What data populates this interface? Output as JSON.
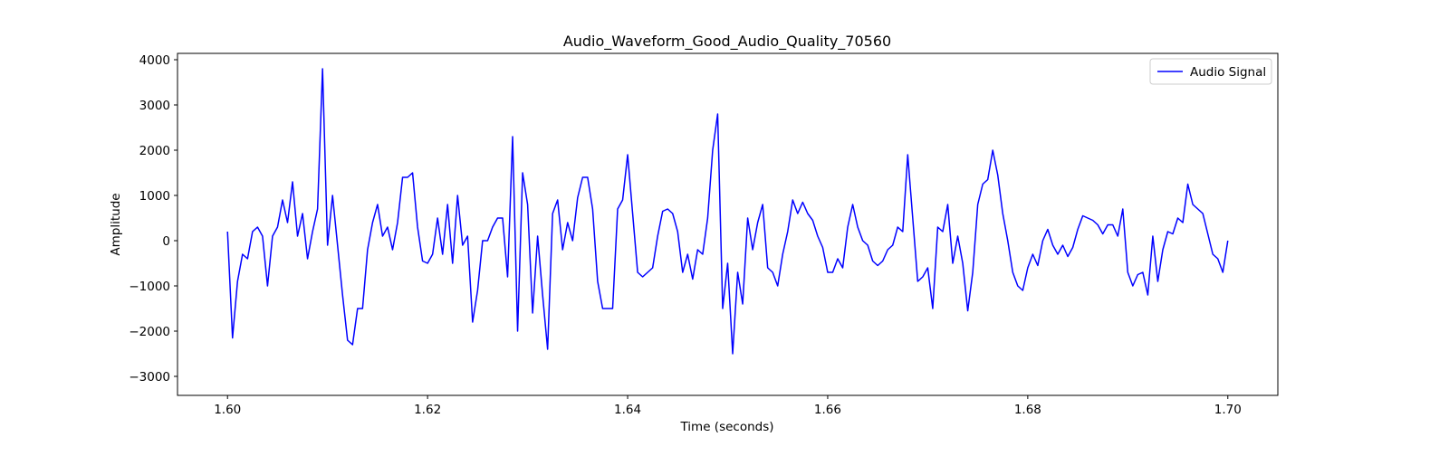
{
  "chart_data": {
    "type": "line",
    "title": "Audio_Waveform_Good_Audio_Quality_70560",
    "xlabel": "Time (seconds)",
    "ylabel": "Amplitude",
    "legend": "upper right",
    "grid": false,
    "xlim": [
      1.595,
      1.705
    ],
    "ylim": [
      -3420,
      4140
    ],
    "xticks": [
      {
        "value": 1.6,
        "label": "1.60"
      },
      1.62,
      1.64,
      1.66,
      1.68,
      {
        "value": 1.7,
        "label": "1.70"
      }
    ],
    "yticks": [
      {
        "value": -3000,
        "label": "−3000"
      },
      {
        "value": -2000,
        "label": "−2000"
      },
      {
        "value": -1000,
        "label": "−1000"
      },
      0,
      1000,
      2000,
      3000,
      4000
    ],
    "x": [
      1.6,
      1.6005,
      1.601,
      1.6015,
      1.602,
      1.6025,
      1.603,
      1.6035,
      1.604,
      1.6045,
      1.605,
      1.6055,
      1.606,
      1.6065,
      1.607,
      1.6075,
      1.608,
      1.6085,
      1.609,
      1.6095,
      1.61,
      1.6105,
      1.611,
      1.6115,
      1.612,
      1.6125,
      1.613,
      1.6135,
      1.614,
      1.6145,
      1.615,
      1.6155,
      1.616,
      1.6165,
      1.617,
      1.6175,
      1.618,
      1.6185,
      1.619,
      1.6195,
      1.62,
      1.6205,
      1.621,
      1.6215,
      1.622,
      1.6225,
      1.623,
      1.6235,
      1.624,
      1.6245,
      1.625,
      1.6255,
      1.626,
      1.6265,
      1.627,
      1.6275,
      1.628,
      1.6285,
      1.629,
      1.6295,
      1.63,
      1.6305,
      1.631,
      1.6315,
      1.632,
      1.6325,
      1.633,
      1.6335,
      1.634,
      1.6345,
      1.635,
      1.6355,
      1.636,
      1.6365,
      1.637,
      1.6375,
      1.638,
      1.6385,
      1.639,
      1.6395,
      1.64,
      1.6405,
      1.641,
      1.6415,
      1.642,
      1.6425,
      1.643,
      1.6435,
      1.644,
      1.6445,
      1.645,
      1.6455,
      1.646,
      1.6465,
      1.647,
      1.6475,
      1.648,
      1.6485,
      1.649,
      1.6495,
      1.65,
      1.6505,
      1.651,
      1.6515,
      1.652,
      1.6525,
      1.653,
      1.6535,
      1.654,
      1.6545,
      1.655,
      1.6555,
      1.656,
      1.6565,
      1.657,
      1.6575,
      1.658,
      1.6585,
      1.659,
      1.6595,
      1.66,
      1.6605,
      1.661,
      1.6615,
      1.662,
      1.6625,
      1.663,
      1.6635,
      1.664,
      1.6645,
      1.665,
      1.6655,
      1.666,
      1.6665,
      1.667,
      1.6675,
      1.668,
      1.6685,
      1.669,
      1.6695,
      1.67,
      1.6705,
      1.671,
      1.6715,
      1.672,
      1.6725,
      1.673,
      1.6735,
      1.674,
      1.6745,
      1.675,
      1.6755,
      1.676,
      1.6765,
      1.677,
      1.6775,
      1.678,
      1.6785,
      1.679,
      1.6795,
      1.68,
      1.6805,
      1.681,
      1.6815,
      1.682,
      1.6825,
      1.683,
      1.6835,
      1.684,
      1.6845,
      1.685,
      1.6855,
      1.686,
      1.6865,
      1.687,
      1.6875,
      1.688,
      1.6885,
      1.689,
      1.6895,
      1.69,
      1.6905,
      1.691,
      1.6915,
      1.692,
      1.6925,
      1.693,
      1.6935,
      1.694,
      1.6945,
      1.695,
      1.6955,
      1.696,
      1.6965,
      1.697,
      1.6975,
      1.698,
      1.6985,
      1.699,
      1.6995,
      1.7
    ],
    "series": [
      {
        "name": "Audio Signal",
        "color": "#0000ff",
        "values": [
          200,
          -2150,
          -900,
          -300,
          -400,
          200,
          300,
          100,
          -1000,
          100,
          300,
          900,
          400,
          1300,
          100,
          600,
          -400,
          200,
          700,
          3800,
          -100,
          1000,
          -100,
          -1200,
          -2200,
          -2300,
          -1500,
          -1500,
          -200,
          400,
          800,
          100,
          300,
          -200,
          400,
          1400,
          1400,
          1500,
          300,
          -450,
          -500,
          -300,
          500,
          -300,
          800,
          -500,
          1000,
          -100,
          100,
          -1800,
          -1100,
          0,
          0,
          300,
          500,
          500,
          -800,
          2300,
          -2000,
          1500,
          800,
          -1600,
          100,
          -1200,
          -2400,
          600,
          900,
          -200,
          400,
          0,
          950,
          1400,
          1400,
          700,
          -900,
          -1500,
          -1500,
          -1500,
          700,
          900,
          1900,
          600,
          -700,
          -800,
          -700,
          -600,
          100,
          650,
          700,
          600,
          200,
          -700,
          -300,
          -850,
          -200,
          -300,
          500,
          2000,
          2800,
          -1500,
          -500,
          -2500,
          -700,
          -1400,
          500,
          -200,
          400,
          800,
          -600,
          -700,
          -1000,
          -300,
          200,
          900,
          600,
          850,
          600,
          450,
          100,
          -150,
          -700,
          -700,
          -400,
          -600,
          300,
          800,
          300,
          0,
          -100,
          -450,
          -550,
          -450,
          -200,
          -100,
          300,
          200,
          1900,
          500,
          -900,
          -800,
          -600,
          -1500,
          300,
          200,
          800,
          -500,
          100,
          -500,
          -1550,
          -700,
          800,
          1250,
          1350,
          2000,
          1450,
          600,
          0,
          -700,
          -1000,
          -1100,
          -600,
          -300,
          -550,
          0,
          250,
          -100,
          -300,
          -100,
          -350,
          -150,
          250,
          550,
          500,
          450,
          350,
          150,
          350,
          350,
          100,
          700,
          -700,
          -1000,
          -750,
          -700,
          -1200,
          100,
          -900,
          -200,
          200,
          150,
          500,
          400,
          1250,
          800,
          700,
          600,
          150,
          -300,
          -400,
          -700,
          0
        ]
      }
    ]
  }
}
